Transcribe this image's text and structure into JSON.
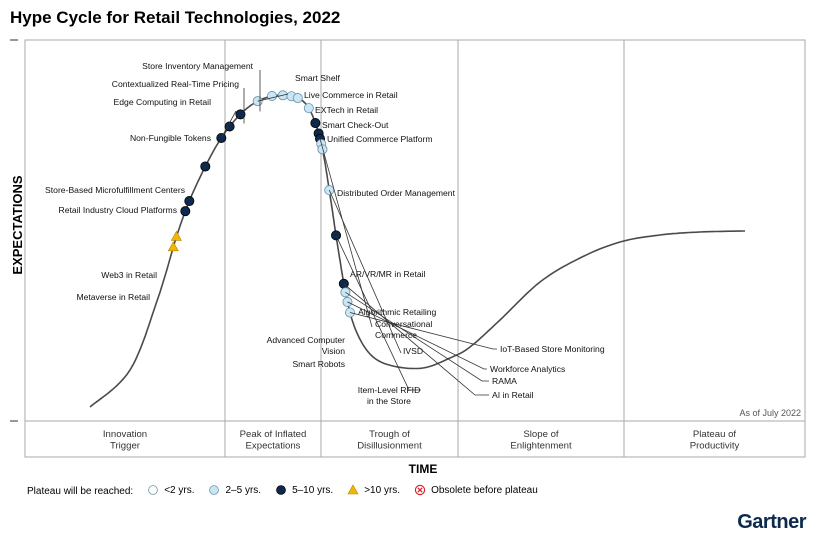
{
  "title": "Hype Cycle for Retail Technologies, 2022",
  "as_of": "As of July 2022",
  "brand": "Gartner",
  "colors": {
    "lt2": "#ffffff",
    "y2to5": "#c9e6f5",
    "y5to10": "#0d2a4e",
    "gt10": "#f2b705",
    "obsolete": "#d9262c",
    "curve": "#4a4a4a",
    "frame": "#aaaaaa",
    "brand": "#0d2a4e"
  },
  "legend": {
    "label": "Plateau will be reached:",
    "items": [
      {
        "key": "lt2",
        "label": "<2 yrs.",
        "shape": "circle-open"
      },
      {
        "key": "y2to5",
        "label": "2–5 yrs.",
        "shape": "circle-light"
      },
      {
        "key": "y5to10",
        "label": "5–10 yrs.",
        "shape": "circle-dark"
      },
      {
        "key": "gt10",
        "label": ">10 yrs.",
        "shape": "triangle"
      },
      {
        "key": "obsolete",
        "label": "Obsolete before plateau",
        "shape": "x-circle"
      }
    ]
  },
  "chart_data": {
    "type": "scatter",
    "xlabel": "TIME",
    "ylabel": "EXPECTATIONS",
    "phases": [
      "Innovation Trigger",
      "Peak of Inflated Expectations",
      "Trough of Disillusionment",
      "Slope of Enlightenment",
      "Plateau of Productivity"
    ],
    "points": [
      {
        "name": "Store Inventory Management",
        "t": 0.308,
        "category": "y5to10"
      },
      {
        "name": "Contextualized Real-Time Pricing",
        "t": 0.293,
        "category": "y5to10"
      },
      {
        "name": "Edge Computing in Retail",
        "t": 0.28,
        "category": "y5to10"
      },
      {
        "name": "Non-Fungible Tokens",
        "t": 0.25,
        "category": "y5to10"
      },
      {
        "name": "Store-Based Microfulfillment Centers",
        "t": 0.215,
        "category": "y5to10"
      },
      {
        "name": "Retail Industry Cloud Platforms",
        "t": 0.205,
        "category": "y5to10"
      },
      {
        "name": "Web3 in Retail",
        "t": 0.18,
        "category": "gt10"
      },
      {
        "name": "Metaverse in Retail",
        "t": 0.17,
        "category": "gt10"
      },
      {
        "name": "Smart Shelf",
        "t": 0.328,
        "category": "y2to5"
      },
      {
        "name": "Live Commerce in Retail",
        "t": 0.342,
        "category": "y2to5"
      },
      {
        "name": "EXTech in Retail",
        "t": 0.352,
        "category": "y2to5"
      },
      {
        "name": "Smart Check-Out",
        "t": 0.36,
        "category": "y2to5"
      },
      {
        "name": "Unified Commerce Platform",
        "t": 0.366,
        "category": "y2to5"
      },
      {
        "name": "Distributed Order Management",
        "t": 0.38,
        "category": "y2to5"
      },
      {
        "name": "AR/VR/MR in Retail",
        "t": 0.395,
        "category": "y5to10"
      },
      {
        "name": "Algorithmic Retailing",
        "t": 0.405,
        "category": "y5to10"
      },
      {
        "name": "Conversational Commerce",
        "t": 0.41,
        "category": "y5to10"
      },
      {
        "name": "Advanced Computer Vision",
        "t": 0.415,
        "category": "y2to5"
      },
      {
        "name": "Smart Robots",
        "t": 0.42,
        "category": "y2to5"
      },
      {
        "name": "IVSD",
        "t": 0.458,
        "category": "y2to5"
      },
      {
        "name": "Item-Level RFID in the Store",
        "t": 0.5,
        "category": "y5to10"
      },
      {
        "name": "AI in Retail",
        "t": 0.545,
        "category": "y5to10"
      },
      {
        "name": "RAMA",
        "t": 0.553,
        "category": "y2to5"
      },
      {
        "name": "Workforce Analytics",
        "t": 0.562,
        "category": "y2to5"
      },
      {
        "name": "IoT-Based Store Monitoring",
        "t": 0.572,
        "category": "y2to5"
      }
    ]
  }
}
